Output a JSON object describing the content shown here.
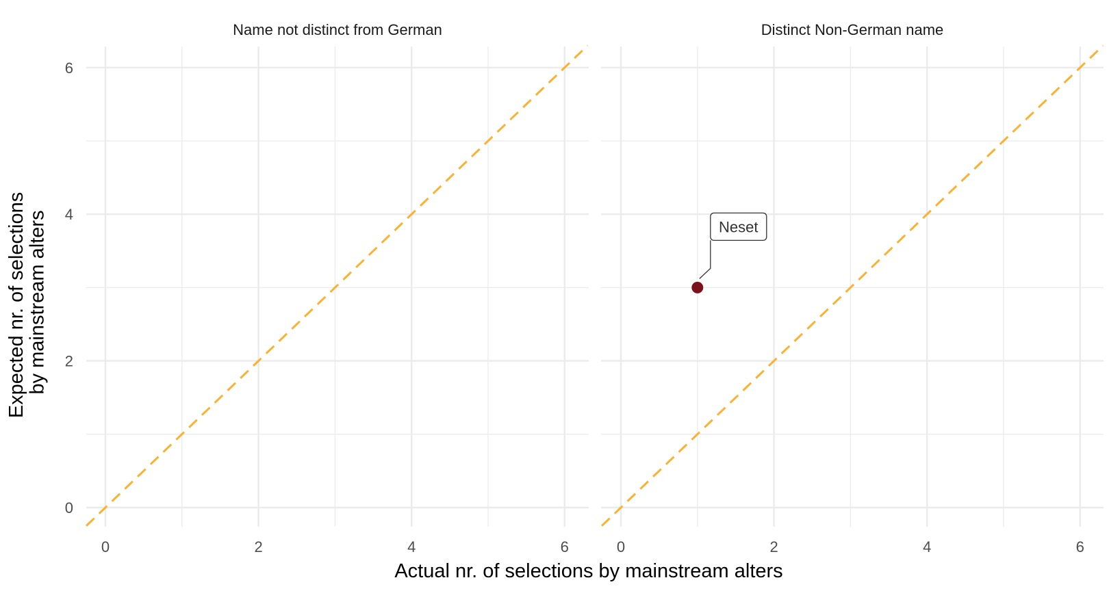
{
  "chart_data": {
    "type": "scatter",
    "xlabel": "Actual nr. of selections by mainstream alters",
    "ylabel_lines": [
      "Expected nr. of selections",
      "by mainstream alters"
    ],
    "xlim": [
      -0.25,
      6.3
    ],
    "ylim": [
      -0.25,
      6.3
    ],
    "major_breaks": [
      0,
      2,
      4,
      6
    ],
    "minor_breaks": [
      1,
      3,
      5
    ],
    "reference_line": {
      "slope": 1,
      "intercept": 0,
      "style": "dashed",
      "color": "#F9B233"
    },
    "point_color": "#7B111B",
    "panels": [
      {
        "title": "Name not distinct from German",
        "points": []
      },
      {
        "title": "Distinct Non-German name",
        "points": [
          {
            "x": 1,
            "y": 3,
            "label": "Neset"
          }
        ]
      }
    ],
    "grid": true,
    "legend": "none"
  }
}
